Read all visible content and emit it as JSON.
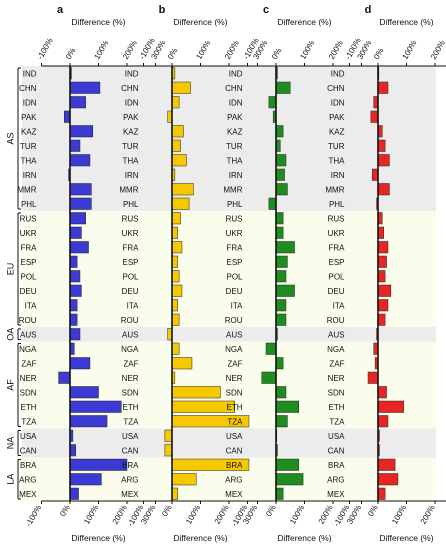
{
  "chart_data": {
    "type": "bar",
    "orientation": "horizontal",
    "categories": [
      "IND",
      "CHN",
      "IDN",
      "PAK",
      "KAZ",
      "TUR",
      "THA",
      "IRN",
      "MMR",
      "PHL",
      "RUS",
      "UKR",
      "FRA",
      "ESP",
      "POL",
      "DEU",
      "ITA",
      "ROU",
      "AUS",
      "NGA",
      "ZAF",
      "NER",
      "SDN",
      "ETH",
      "TZA",
      "USA",
      "CAN",
      "BRA",
      "ARG",
      "MEX"
    ],
    "regions": [
      {
        "label": "AS",
        "start": 0,
        "end": 9,
        "background": "#ececec"
      },
      {
        "label": "EU",
        "start": 10,
        "end": 17,
        "background": "#fbfdec"
      },
      {
        "label": "OA",
        "start": 18,
        "end": 18,
        "background": "#ececec"
      },
      {
        "label": "AF",
        "start": 19,
        "end": 24,
        "background": "#fbfdec"
      },
      {
        "label": "NA",
        "start": 25,
        "end": 26,
        "background": "#ececec"
      },
      {
        "label": "LA",
        "start": 27,
        "end": 29,
        "background": "#fbfdec"
      }
    ],
    "xlabel": "Difference (%)",
    "xlim": [
      -100,
      300
    ],
    "xticks": [
      -100,
      0,
      100,
      200,
      300
    ],
    "xtick_labels": [
      "-100%",
      "0%",
      "100%",
      "200%",
      "300%"
    ],
    "grid": false,
    "panels": [
      {
        "letter": "a",
        "color": "#3b3bd4",
        "values": [
          5,
          105,
          55,
          -20,
          80,
          35,
          70,
          -5,
          75,
          75,
          55,
          40,
          65,
          25,
          35,
          40,
          25,
          25,
          35,
          15,
          70,
          -40,
          100,
          180,
          130,
          10,
          20,
          200,
          110,
          30
        ]
      },
      {
        "letter": "b",
        "color": "#f5c800",
        "values": [
          10,
          65,
          25,
          -15,
          40,
          30,
          50,
          10,
          75,
          60,
          30,
          20,
          35,
          20,
          25,
          35,
          20,
          25,
          -15,
          25,
          70,
          10,
          170,
          220,
          270,
          -25,
          -25,
          270,
          85,
          20
        ]
      },
      {
        "letter": "c",
        "color": "#1e8c1e",
        "values": [
          5,
          50,
          -25,
          -10,
          25,
          15,
          35,
          30,
          40,
          -25,
          25,
          25,
          65,
          40,
          35,
          65,
          35,
          35,
          5,
          -35,
          25,
          -50,
          35,
          80,
          40,
          0,
          5,
          80,
          95,
          25
        ]
      },
      {
        "letter": "d",
        "color": "#e82525",
        "values": [
          3,
          35,
          -15,
          -25,
          15,
          25,
          40,
          -20,
          40,
          -5,
          15,
          20,
          35,
          30,
          25,
          45,
          35,
          25,
          -5,
          -15,
          -10,
          -35,
          30,
          90,
          35,
          5,
          5,
          60,
          70,
          25
        ]
      }
    ]
  }
}
